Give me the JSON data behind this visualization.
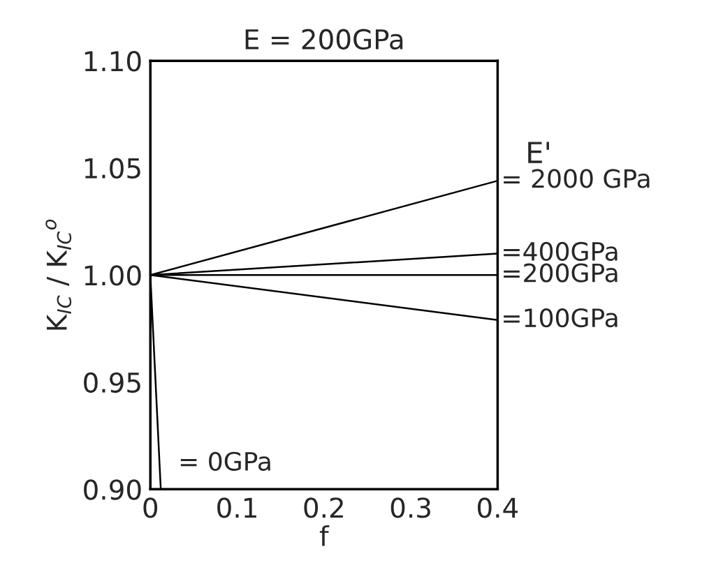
{
  "chart_data": {
    "type": "line",
    "title": "E = 200GPa",
    "xlabel": "f",
    "ylabel": "K$_{IC}$ / K$_{IC}$$^{o}$",
    "annotations": [
      "E'"
    ],
    "series": [
      {
        "name": "= 2000 GPa",
        "color": "#000000",
        "x": [
          0,
          0.4
        ],
        "values": [
          1.0,
          1.044
        ]
      },
      {
        "name": "=400GPa",
        "color": "#000000",
        "x": [
          0,
          0.4
        ],
        "values": [
          1.0,
          1.01
        ]
      },
      {
        "name": "=200GPa",
        "color": "#000000",
        "x": [
          0,
          0.4
        ],
        "values": [
          1.0,
          1.0
        ]
      },
      {
        "name": "=100GPa",
        "color": "#000000",
        "x": [
          0,
          0.4
        ],
        "values": [
          1.0,
          0.979
        ]
      },
      {
        "name": "= 0GPa",
        "color": "#000000",
        "x": [
          0,
          0.012
        ],
        "values": [
          1.0,
          0.9
        ]
      }
    ],
    "xlim": [
      0,
      0.4
    ],
    "ylim": [
      0.9,
      1.1
    ],
    "xticks": [
      0,
      {
        "value": 0.1,
        "label": "0.1"
      },
      {
        "value": 0.2,
        "label": "0.2"
      },
      {
        "value": 0.3,
        "label": "0.3"
      },
      {
        "value": 0.4,
        "label": "0.4"
      }
    ],
    "yticks": [
      {
        "value": 0.9,
        "label": "0.90"
      },
      {
        "value": 0.95,
        "label": "0.95"
      },
      {
        "value": 1.0,
        "label": "1.00"
      },
      {
        "value": 1.05,
        "label": "1.05"
      },
      {
        "value": 1.1,
        "label": "1.10"
      }
    ],
    "grid": false,
    "legend": false,
    "marker": "none",
    "line_style": "solid"
  }
}
